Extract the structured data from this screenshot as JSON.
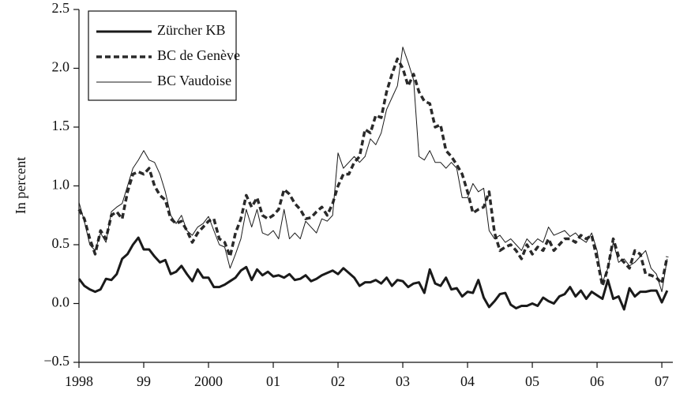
{
  "chart_data": {
    "type": "line",
    "y_label": "In percent",
    "xlim": [
      1998,
      2007.17
    ],
    "ylim": [
      -0.5,
      2.5
    ],
    "xticks": [
      1998,
      {
        "value": 1999,
        "label": "99"
      },
      2000,
      {
        "value": 2001,
        "label": "01"
      },
      {
        "value": 2002,
        "label": "02"
      },
      {
        "value": 2003,
        "label": "03"
      },
      {
        "value": 2004,
        "label": "04"
      },
      {
        "value": 2005,
        "label": "05"
      },
      {
        "value": 2006,
        "label": "06"
      },
      {
        "value": 2007,
        "label": "07"
      }
    ],
    "yticks": [
      {
        "value": -0.5,
        "label": "−0.5"
      },
      {
        "value": 0,
        "label": "0.0"
      },
      0.5,
      {
        "value": 1,
        "label": "1.0"
      },
      1.5,
      {
        "value": 2,
        "label": "2.0"
      },
      2.5
    ],
    "legend": "upper left",
    "x": [
      1998,
      1998.083,
      1998.167,
      1998.25,
      1998.333,
      1998.417,
      1998.5,
      1998.583,
      1998.667,
      1998.75,
      1998.833,
      1998.917,
      1999,
      1999.083,
      1999.167,
      1999.25,
      1999.333,
      1999.417,
      1999.5,
      1999.583,
      1999.667,
      1999.75,
      1999.833,
      1999.917,
      2000,
      2000.083,
      2000.167,
      2000.25,
      2000.333,
      2000.417,
      2000.5,
      2000.583,
      2000.667,
      2000.75,
      2000.833,
      2000.917,
      2001,
      2001.083,
      2001.167,
      2001.25,
      2001.333,
      2001.417,
      2001.5,
      2001.583,
      2001.667,
      2001.75,
      2001.833,
      2001.917,
      2002,
      2002.083,
      2002.167,
      2002.25,
      2002.333,
      2002.417,
      2002.5,
      2002.583,
      2002.667,
      2002.75,
      2002.833,
      2002.917,
      2003,
      2003.083,
      2003.167,
      2003.25,
      2003.333,
      2003.417,
      2003.5,
      2003.583,
      2003.667,
      2003.75,
      2003.833,
      2003.917,
      2004,
      2004.083,
      2004.167,
      2004.25,
      2004.333,
      2004.417,
      2004.5,
      2004.583,
      2004.667,
      2004.75,
      2004.833,
      2004.917,
      2005,
      2005.083,
      2005.167,
      2005.25,
      2005.333,
      2005.417,
      2005.5,
      2005.583,
      2005.667,
      2005.75,
      2005.833,
      2005.917,
      2006,
      2006.083,
      2006.167,
      2006.25,
      2006.333,
      2006.417,
      2006.5,
      2006.583,
      2006.667,
      2006.75,
      2006.833,
      2006.917,
      2007,
      2007.083
    ],
    "series": [
      {
        "name": "Zürcher KB",
        "color": "#1a1a1a",
        "line_width": 3,
        "dashed": false,
        "values": [
          0.21,
          0.15,
          0.12,
          0.1,
          0.12,
          0.21,
          0.2,
          0.25,
          0.38,
          0.42,
          0.5,
          0.56,
          0.46,
          0.46,
          0.4,
          0.35,
          0.37,
          0.25,
          0.27,
          0.32,
          0.25,
          0.19,
          0.29,
          0.22,
          0.22,
          0.14,
          0.14,
          0.16,
          0.19,
          0.22,
          0.28,
          0.31,
          0.2,
          0.29,
          0.24,
          0.27,
          0.23,
          0.24,
          0.22,
          0.25,
          0.2,
          0.21,
          0.24,
          0.19,
          0.21,
          0.24,
          0.26,
          0.28,
          0.25,
          0.3,
          0.26,
          0.22,
          0.15,
          0.18,
          0.18,
          0.2,
          0.17,
          0.22,
          0.15,
          0.2,
          0.19,
          0.14,
          0.17,
          0.18,
          0.09,
          0.29,
          0.17,
          0.15,
          0.22,
          0.12,
          0.13,
          0.06,
          0.1,
          0.09,
          0.2,
          0.05,
          -0.03,
          0.02,
          0.08,
          0.09,
          -0.01,
          -0.04,
          -0.02,
          -0.02,
          0.0,
          -0.02,
          0.05,
          0.02,
          0.0,
          0.06,
          0.08,
          0.14,
          0.06,
          0.11,
          0.04,
          0.1,
          0.07,
          0.04,
          0.2,
          0.04,
          0.06,
          -0.05,
          0.13,
          0.06,
          0.1,
          0.1,
          0.11,
          0.11,
          0.01,
          0.11
        ]
      },
      {
        "name": "BC de Genève",
        "color": "#2a2a2a",
        "line_width": 3.5,
        "dashed": true,
        "values": [
          0.8,
          0.72,
          0.55,
          0.42,
          0.62,
          0.55,
          0.75,
          0.78,
          0.72,
          0.95,
          1.1,
          1.12,
          1.1,
          1.15,
          1.0,
          0.92,
          0.88,
          0.72,
          0.68,
          0.7,
          0.62,
          0.52,
          0.6,
          0.65,
          0.7,
          0.72,
          0.55,
          0.52,
          0.4,
          0.6,
          0.72,
          0.92,
          0.82,
          0.9,
          0.75,
          0.72,
          0.75,
          0.8,
          0.97,
          0.93,
          0.85,
          0.8,
          0.72,
          0.73,
          0.78,
          0.82,
          0.75,
          0.85,
          1.0,
          1.1,
          1.1,
          1.2,
          1.25,
          1.48,
          1.45,
          1.6,
          1.58,
          1.8,
          1.95,
          2.08,
          2.0,
          1.85,
          1.95,
          1.8,
          1.72,
          1.7,
          1.5,
          1.52,
          1.3,
          1.25,
          1.18,
          1.1,
          0.95,
          0.77,
          0.8,
          0.82,
          0.95,
          0.6,
          0.45,
          0.48,
          0.5,
          0.45,
          0.38,
          0.5,
          0.42,
          0.48,
          0.45,
          0.55,
          0.45,
          0.5,
          0.55,
          0.55,
          0.52,
          0.58,
          0.55,
          0.58,
          0.38,
          0.15,
          0.3,
          0.55,
          0.4,
          0.35,
          0.3,
          0.45,
          0.42,
          0.25,
          0.24,
          0.22,
          0.17,
          0.4
        ]
      },
      {
        "name": "BC Vaudoise",
        "color": "#1a1a1a",
        "line_width": 1,
        "dashed": false,
        "values": [
          0.86,
          0.7,
          0.5,
          0.45,
          0.6,
          0.52,
          0.78,
          0.82,
          0.85,
          1.0,
          1.15,
          1.22,
          1.3,
          1.22,
          1.2,
          1.1,
          0.95,
          0.75,
          0.68,
          0.75,
          0.62,
          0.58,
          0.65,
          0.68,
          0.74,
          0.62,
          0.5,
          0.48,
          0.3,
          0.42,
          0.55,
          0.8,
          0.65,
          0.8,
          0.6,
          0.58,
          0.62,
          0.55,
          0.8,
          0.55,
          0.6,
          0.55,
          0.7,
          0.65,
          0.6,
          0.72,
          0.7,
          0.75,
          1.28,
          1.15,
          1.2,
          1.25,
          1.2,
          1.25,
          1.4,
          1.35,
          1.45,
          1.65,
          1.75,
          1.85,
          2.18,
          2.05,
          1.9,
          1.25,
          1.22,
          1.3,
          1.2,
          1.2,
          1.15,
          1.2,
          1.15,
          0.9,
          0.9,
          1.02,
          0.95,
          0.98,
          0.62,
          0.55,
          0.58,
          0.52,
          0.55,
          0.5,
          0.45,
          0.55,
          0.5,
          0.55,
          0.52,
          0.65,
          0.58,
          0.6,
          0.62,
          0.57,
          0.6,
          0.55,
          0.52,
          0.6,
          0.45,
          0.18,
          0.3,
          0.52,
          0.35,
          0.38,
          0.32,
          0.35,
          0.4,
          0.45,
          0.3,
          0.25,
          0.1,
          0.38
        ]
      }
    ]
  }
}
